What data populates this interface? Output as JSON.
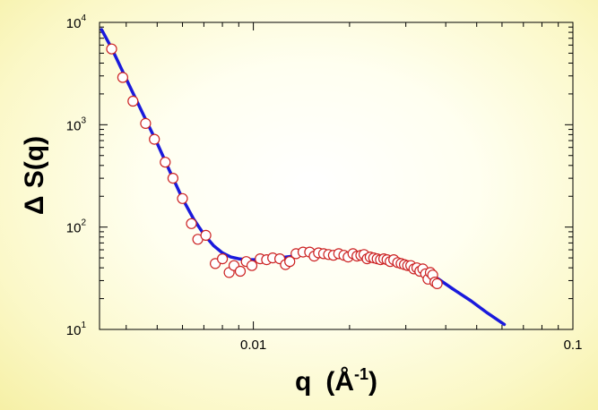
{
  "chart_data": {
    "type": "scatter",
    "xlabel_main": "q",
    "xlabel_unit_base": "(Å",
    "xlabel_unit_exp": "-1",
    "xlabel_unit_close": ")",
    "ylabel": "Δ S(q)",
    "x_scale": "log",
    "y_scale": "log",
    "xlim": [
      0.0033,
      0.1
    ],
    "ylim": [
      10,
      10000
    ],
    "grid": false,
    "legend": "none",
    "x_tick_labels": [
      {
        "value": 0.01,
        "label": "0.01"
      },
      {
        "value": 0.1,
        "label": "0.1"
      }
    ],
    "y_tick_labels": [
      {
        "value": 10,
        "base": "10",
        "exp": "1"
      },
      {
        "value": 100,
        "base": "10",
        "exp": "2"
      },
      {
        "value": 1000,
        "base": "10",
        "exp": "3"
      },
      {
        "value": 10000,
        "base": "10",
        "exp": "4"
      }
    ],
    "series": [
      {
        "kind": "markers",
        "color": "#cc2222",
        "points": [
          [
            0.0036,
            5500
          ],
          [
            0.0039,
            2900
          ],
          [
            0.0042,
            1700
          ],
          [
            0.0046,
            1030
          ],
          [
            0.0049,
            720
          ],
          [
            0.0053,
            430
          ],
          [
            0.0056,
            300
          ],
          [
            0.006,
            190
          ],
          [
            0.0064,
            108
          ],
          [
            0.0067,
            76
          ],
          [
            0.0071,
            83
          ],
          [
            0.0076,
            44
          ],
          [
            0.008,
            49
          ],
          [
            0.0084,
            36
          ],
          [
            0.0087,
            42
          ],
          [
            0.0091,
            37
          ],
          [
            0.0095,
            46
          ],
          [
            0.0099,
            42
          ],
          [
            0.0105,
            49
          ],
          [
            0.011,
            48
          ],
          [
            0.0115,
            50
          ],
          [
            0.0121,
            49
          ],
          [
            0.0126,
            43
          ],
          [
            0.013,
            46
          ],
          [
            0.0136,
            55
          ],
          [
            0.0143,
            57
          ],
          [
            0.015,
            57
          ],
          [
            0.0155,
            52
          ],
          [
            0.016,
            56
          ],
          [
            0.0166,
            55
          ],
          [
            0.0172,
            54
          ],
          [
            0.0178,
            53
          ],
          [
            0.0185,
            55
          ],
          [
            0.0192,
            53
          ],
          [
            0.0198,
            51
          ],
          [
            0.0205,
            55
          ],
          [
            0.0211,
            52
          ],
          [
            0.0217,
            53
          ],
          [
            0.0222,
            54
          ],
          [
            0.0227,
            49
          ],
          [
            0.0232,
            51
          ],
          [
            0.0238,
            50
          ],
          [
            0.0244,
            49
          ],
          [
            0.025,
            48
          ],
          [
            0.0256,
            49
          ],
          [
            0.0262,
            48
          ],
          [
            0.0268,
            46
          ],
          [
            0.0275,
            48
          ],
          [
            0.0283,
            45
          ],
          [
            0.029,
            44
          ],
          [
            0.0297,
            43
          ],
          [
            0.0304,
            42
          ],
          [
            0.0311,
            42
          ],
          [
            0.0318,
            39
          ],
          [
            0.0325,
            40
          ],
          [
            0.0332,
            37
          ],
          [
            0.0339,
            39
          ],
          [
            0.0346,
            35
          ],
          [
            0.0352,
            31
          ],
          [
            0.0358,
            36
          ],
          [
            0.0364,
            34
          ],
          [
            0.037,
            29
          ],
          [
            0.0376,
            28
          ]
        ]
      },
      {
        "kind": "line",
        "color": "#1a1adc",
        "points": [
          [
            0.00335,
            8500
          ],
          [
            0.0036,
            5600
          ],
          [
            0.004,
            2800
          ],
          [
            0.0045,
            1300
          ],
          [
            0.005,
            660
          ],
          [
            0.0055,
            340
          ],
          [
            0.006,
            190
          ],
          [
            0.0065,
            120
          ],
          [
            0.007,
            85
          ],
          [
            0.0075,
            66
          ],
          [
            0.008,
            56
          ],
          [
            0.0085,
            51
          ],
          [
            0.009,
            49
          ],
          [
            0.0095,
            48
          ],
          [
            0.01,
            48
          ],
          [
            0.011,
            48.5
          ],
          [
            0.012,
            50
          ],
          [
            0.014,
            53
          ],
          [
            0.016,
            55
          ],
          [
            0.018,
            55
          ],
          [
            0.02,
            54
          ],
          [
            0.023,
            51
          ],
          [
            0.026,
            48
          ],
          [
            0.03,
            43
          ],
          [
            0.034,
            37
          ],
          [
            0.038,
            31
          ],
          [
            0.042,
            25
          ],
          [
            0.048,
            19
          ],
          [
            0.054,
            14.5
          ],
          [
            0.061,
            11.2
          ]
        ]
      }
    ]
  }
}
